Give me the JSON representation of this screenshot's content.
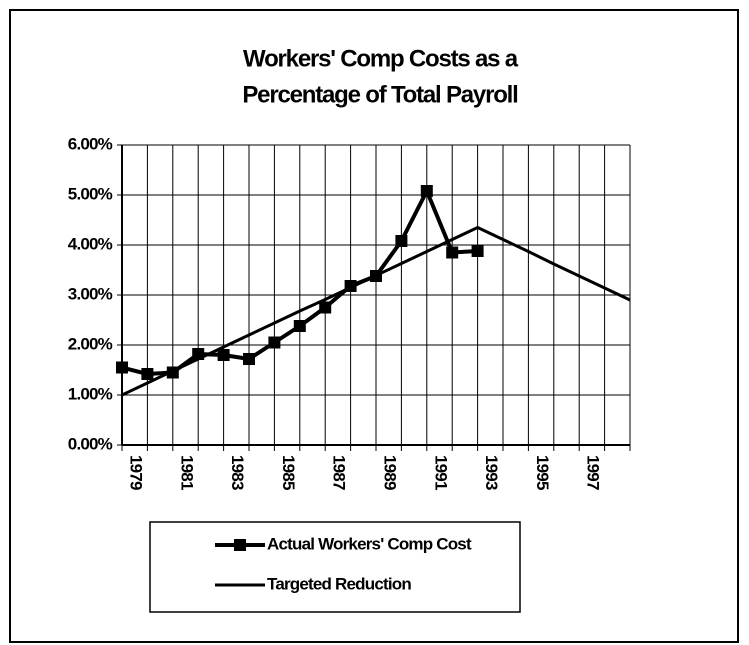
{
  "chart_data": {
    "type": "line",
    "title": [
      "Workers' Comp Costs as a",
      "Percentage of Total Payroll"
    ],
    "categories": [
      "1979",
      null,
      "1981",
      null,
      "1983",
      null,
      "1985",
      null,
      "1987",
      null,
      "1989",
      null,
      "1991",
      null,
      "1993",
      null,
      "1995",
      null,
      "1997",
      null,
      null
    ],
    "series": [
      {
        "name": "Actual Workers' Comp Cost",
        "color": "#000000",
        "marker": "square",
        "values": [
          1.55,
          1.42,
          1.45,
          1.82,
          1.8,
          1.72,
          2.05,
          2.38,
          2.75,
          3.18,
          3.38,
          4.08,
          5.08,
          3.85,
          3.88,
          null,
          null,
          null,
          null,
          null,
          null
        ]
      },
      {
        "name": "Targeted Reduction",
        "color": "#000000",
        "values": [
          1.0,
          1.24,
          1.48,
          1.72,
          1.96,
          2.2,
          2.44,
          2.68,
          2.91,
          3.15,
          3.39,
          3.63,
          3.87,
          4.11,
          4.35,
          4.11,
          3.87,
          3.62,
          3.38,
          3.14,
          2.9
        ]
      }
    ],
    "ylim": [
      0,
      6
    ],
    "yticks": [
      {
        "value": 0,
        "label": "0.00%"
      },
      {
        "value": 1,
        "label": "1.00%"
      },
      {
        "value": 2,
        "label": "2.00%"
      },
      {
        "value": 3,
        "label": "3.00%"
      },
      {
        "value": 4,
        "label": "4.00%"
      },
      {
        "value": 5,
        "label": "5.00%"
      },
      {
        "value": 6,
        "label": "6.00%"
      }
    ],
    "grid": true,
    "legend": "bottom"
  }
}
